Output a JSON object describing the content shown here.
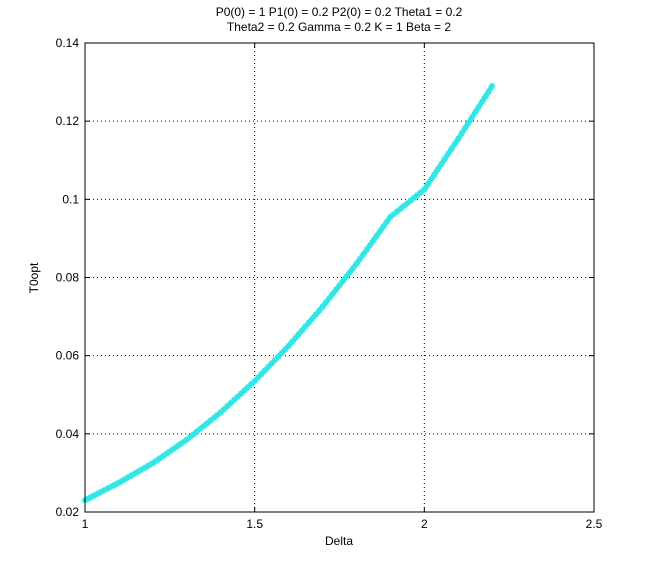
{
  "chart_data": {
    "type": "line",
    "title_line1": "P0(0) = 1 P1(0) = 0.2 P2(0) = 0.2 Theta1 = 0.2",
    "title_line2": "Theta2 = 0.2 Gamma = 0.2 K = 1 Beta = 2",
    "xlabel": "Delta",
    "ylabel": "T0opt",
    "xlim": [
      1,
      2.5
    ],
    "ylim": [
      0.02,
      0.14
    ],
    "xticks": [
      1,
      1.5,
      2,
      2.5
    ],
    "xtick_labels": [
      "1",
      "1.5",
      "2",
      "2.5"
    ],
    "yticks": [
      0.02,
      0.04,
      0.06,
      0.08,
      0.1,
      0.12,
      0.14
    ],
    "ytick_labels": [
      "0.02",
      "0.04",
      "0.06",
      "0.08",
      "0.1",
      "0.12",
      "0.14"
    ],
    "grid": true,
    "marker": "*",
    "series": [
      {
        "color": "#33e6e6",
        "x": [
          1.0,
          1.1,
          1.2,
          1.3,
          1.4,
          1.5,
          1.6,
          1.7,
          1.8,
          1.9,
          2.0,
          2.1,
          2.2
        ],
        "y": [
          0.023,
          0.0275,
          0.0325,
          0.0385,
          0.0455,
          0.0535,
          0.0625,
          0.0725,
          0.0835,
          0.0955,
          0.1025,
          0.1155,
          0.129
        ]
      }
    ]
  }
}
